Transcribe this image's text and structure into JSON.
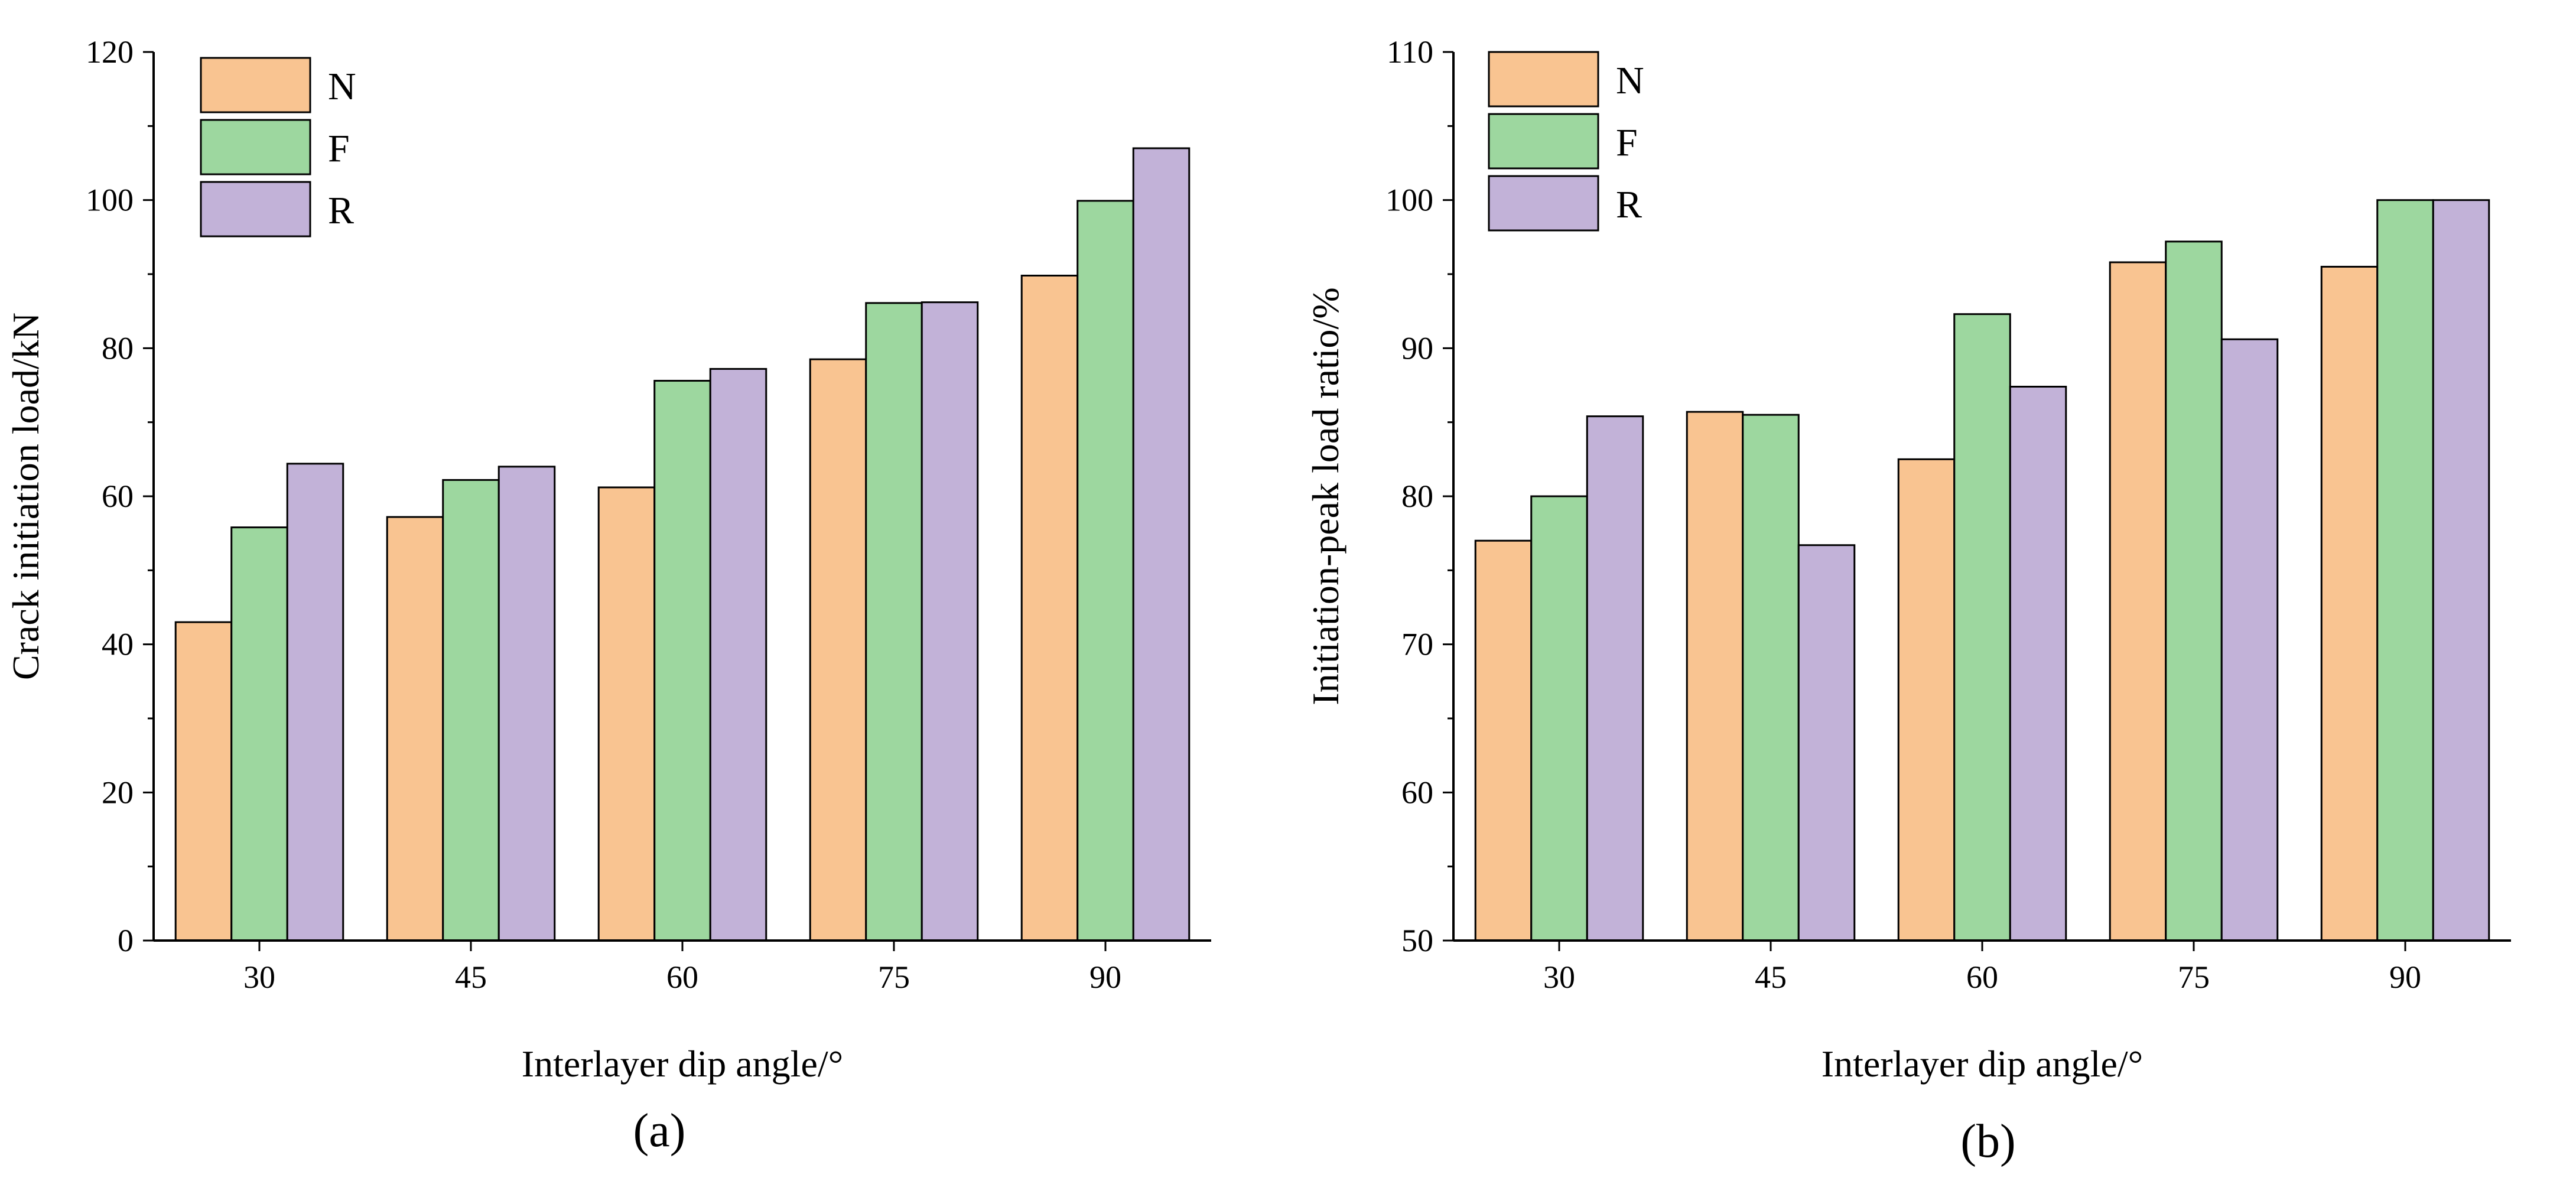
{
  "colors": {
    "N": "#f9c491",
    "F": "#9dd79f",
    "R": "#c2b2d8",
    "axis": "#000000",
    "bar_edge": "#000000"
  },
  "chart_data": [
    {
      "type": "bar",
      "panel_label": "(a)",
      "categories": [
        "30",
        "45",
        "60",
        "75",
        "90"
      ],
      "series": [
        {
          "name": "N",
          "values": [
            43,
            57.2,
            61.2,
            78.5,
            89.8
          ]
        },
        {
          "name": "F",
          "values": [
            55.8,
            62.2,
            75.6,
            86.1,
            99.9
          ]
        },
        {
          "name": "R",
          "values": [
            64.4,
            64,
            77.2,
            86.2,
            107
          ]
        }
      ],
      "title": "",
      "xlabel": "Interlayer dip angle/°",
      "ylabel": "Crack initiation load/kN",
      "ylim": [
        0,
        120
      ],
      "yticks": [
        0,
        20,
        40,
        60,
        80,
        100,
        120
      ],
      "legend": "top-left",
      "grid": false
    },
    {
      "type": "bar",
      "panel_label": "(b)",
      "categories": [
        "30",
        "45",
        "60",
        "75",
        "90"
      ],
      "series": [
        {
          "name": "N",
          "values": [
            77,
            85.7,
            82.5,
            95.8,
            95.5
          ]
        },
        {
          "name": "F",
          "values": [
            80,
            85.5,
            92.3,
            97.2,
            100
          ]
        },
        {
          "name": "R",
          "values": [
            85.4,
            76.7,
            87.4,
            90.6,
            100
          ]
        }
      ],
      "title": "",
      "xlabel": "Interlayer dip angle/°",
      "ylabel": "Initiation-peak load ratio/%",
      "ylim": [
        50,
        110
      ],
      "yticks": [
        50,
        60,
        70,
        80,
        90,
        100,
        110
      ],
      "legend": "top-left",
      "grid": false
    }
  ]
}
